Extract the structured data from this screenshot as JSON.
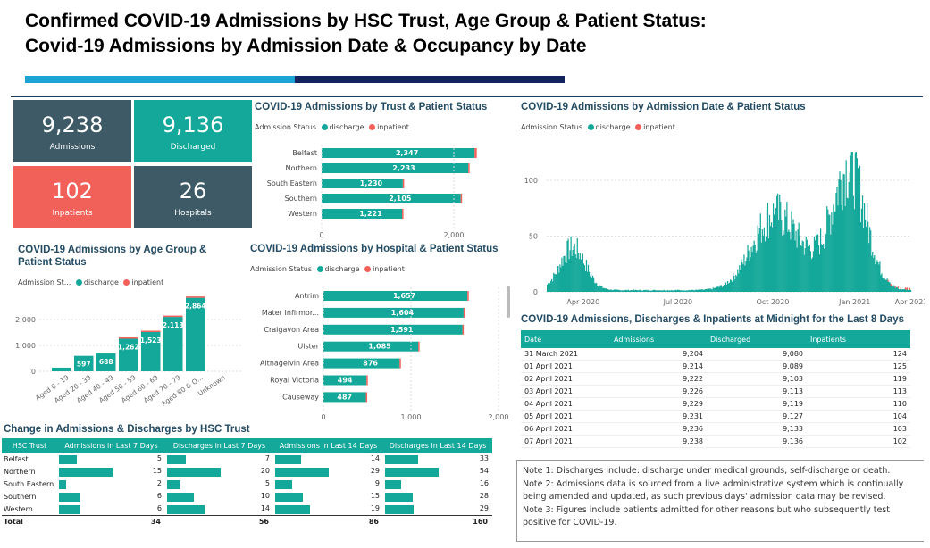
{
  "page": {
    "title_line1": "Confirmed COVID-19 Admissions  by HSC Trust, Age Group & Patient Status:",
    "title_line2": "Covid-19 Admissions  by Admission Date & Occupancy by Date"
  },
  "colors": {
    "teal": "#14a89a",
    "red": "#f2605a",
    "dark": "#3d5a66",
    "accent_blue": "#1ba3d6",
    "navy": "#12235e"
  },
  "kpis": [
    {
      "value": "9,238",
      "label": "Admissions",
      "color": "#3d5a66"
    },
    {
      "value": "9,136",
      "label": "Discharged",
      "color": "#14a89a"
    },
    {
      "value": "102",
      "label": "Inpatients",
      "color": "#f2605a"
    },
    {
      "value": "26",
      "label": "Hospitals",
      "color": "#3d5a66"
    }
  ],
  "legend": {
    "title": "Admission Status",
    "title_short": "Admission St...",
    "discharge": "discharge",
    "inpatient": "inpatient"
  },
  "trust_chart": {
    "title": "COVID-19 Admissions by Trust & Patient Status"
  },
  "age_chart": {
    "title": "COVID-19 Admissions by Age Group & Patient Status"
  },
  "hospital_chart": {
    "title": "COVID-19 Admissions by Hospital & Patient Status"
  },
  "date_chart": {
    "title": "COVID-19 Admissions by Admission Date & Patient Status"
  },
  "chart_data": [
    {
      "type": "bar",
      "orientation": "horizontal",
      "title": "COVID-19 Admissions by Trust & Patient Status",
      "categories": [
        "Belfast",
        "Northern",
        "South Eastern",
        "Southern",
        "Western"
      ],
      "series": [
        {
          "name": "discharge",
          "values": [
            2314,
            2218,
            1228,
            2104,
            1217
          ]
        },
        {
          "name": "inpatient",
          "values": [
            33,
            15,
            2,
            1,
            4
          ]
        }
      ],
      "data_labels": [
        "2,347",
        "2,233",
        "1,230",
        "2,105",
        "1,221"
      ],
      "xticks": [
        "0",
        "2,000"
      ],
      "xlim": [
        0,
        2500
      ]
    },
    {
      "type": "bar",
      "orientation": "vertical",
      "title": "COVID-19 Admissions by Age Group & Patient Status",
      "categories": [
        "Aged 0 - 19",
        "Aged 20 - 39",
        "Aged 40 - 49",
        "Aged 50 - 59",
        "Aged 60 - 69",
        "Aged 70 - 79",
        "Aged 80 & O...",
        "Unknown"
      ],
      "series": [
        {
          "name": "discharge",
          "values": [
            140,
            597,
            688,
            1258,
            1518,
            2100,
            2840,
            0
          ]
        },
        {
          "name": "inpatient",
          "values": [
            0,
            0,
            0,
            4,
            5,
            13,
            24,
            0
          ]
        }
      ],
      "data_labels": [
        "",
        "597",
        "688",
        "1,262",
        "1,523",
        "2,113",
        "2,864",
        ""
      ],
      "yticks": [
        "0",
        "1,000",
        "2,000"
      ],
      "ylim": [
        0,
        3000
      ]
    },
    {
      "type": "bar",
      "orientation": "horizontal",
      "title": "COVID-19 Admissions by Hospital & Patient Status",
      "categories": [
        "Antrim",
        "Mater Infirmor...",
        "Craigavon Area",
        "Ulster",
        "Altnagelvin Area",
        "Royal Victoria",
        "Causeway"
      ],
      "series": [
        {
          "name": "discharge",
          "values": [
            1645,
            1601,
            1588,
            1083,
            870,
            492,
            485
          ]
        },
        {
          "name": "inpatient",
          "values": [
            12,
            3,
            3,
            2,
            6,
            2,
            2
          ]
        }
      ],
      "data_labels": [
        "1,657",
        "1,604",
        "1,591",
        "1,085",
        "876",
        "494",
        "487"
      ],
      "xticks": [
        "0",
        "1,000",
        "2,000"
      ],
      "xlim": [
        0,
        2000
      ]
    },
    {
      "type": "bar",
      "title": "COVID-19 Admissions by Admission Date & Patient Status",
      "x_range": [
        "2020-03",
        "2021-04"
      ],
      "xticks": [
        "Apr 2020",
        "Jul 2020",
        "Oct 2020",
        "Jan 2021",
        "Apr 2021"
      ],
      "yticks": [
        "0",
        "50",
        "100"
      ],
      "ylim": [
        0,
        120
      ],
      "waves": [
        {
          "peak_month": "Apr 2020",
          "peak": 40
        },
        {
          "peak_month": "Nov 2020",
          "peak": 70
        },
        {
          "peak_month": "Jan 2021",
          "peak": 110
        }
      ]
    }
  ],
  "occupancy": {
    "title": "COVID-19 Admissions, Discharges & Inpatients at Midnight for the Last 8 Days",
    "columns": [
      "Date",
      "Admissions",
      "Discharged",
      "Inpatients"
    ],
    "rows": [
      [
        "31 March 2021",
        "9,204",
        "9,080",
        "124"
      ],
      [
        "01 April 2021",
        "9,214",
        "9,089",
        "125"
      ],
      [
        "02 April 2021",
        "9,222",
        "9,103",
        "119"
      ],
      [
        "03 April 2021",
        "9,226",
        "9,113",
        "113"
      ],
      [
        "04 April 2021",
        "9,229",
        "9,119",
        "110"
      ],
      [
        "05 April 2021",
        "9,231",
        "9,127",
        "104"
      ],
      [
        "06 April 2021",
        "9,236",
        "9,133",
        "103"
      ],
      [
        "07 April 2021",
        "9,238",
        "9,136",
        "102"
      ]
    ]
  },
  "change": {
    "title": "Change in Admissions & Discharges by HSC Trust",
    "columns": [
      "HSC Trust",
      "Admissions in Last 7 Days",
      "Discharges in Last 7 Days",
      "Admissions in Last 14 Days",
      "Discharges in Last 14 Days"
    ],
    "rows": [
      [
        "Belfast",
        5,
        7,
        14,
        33
      ],
      [
        "Northern",
        15,
        20,
        29,
        54
      ],
      [
        "South Eastern",
        2,
        5,
        9,
        16
      ],
      [
        "Southern",
        6,
        10,
        15,
        28
      ],
      [
        "Western",
        6,
        14,
        19,
        29
      ]
    ],
    "total": [
      "Total",
      "34",
      "56",
      "86",
      "160"
    ]
  },
  "notes": {
    "n1_label": "Note 1:",
    "n1": " Discharges include: discharge under medical grounds, self-discharge or death.",
    "n2_label": "Note 2:",
    "n2": " Admissions data is sourced from a live administrative system which is continually being amended and updated, as such previous days' admission data may be revised.",
    "n3_label": "Note 3:",
    "n3": " Figures include patients admitted for other reasons but who subsequently test positive for COVID-19."
  }
}
